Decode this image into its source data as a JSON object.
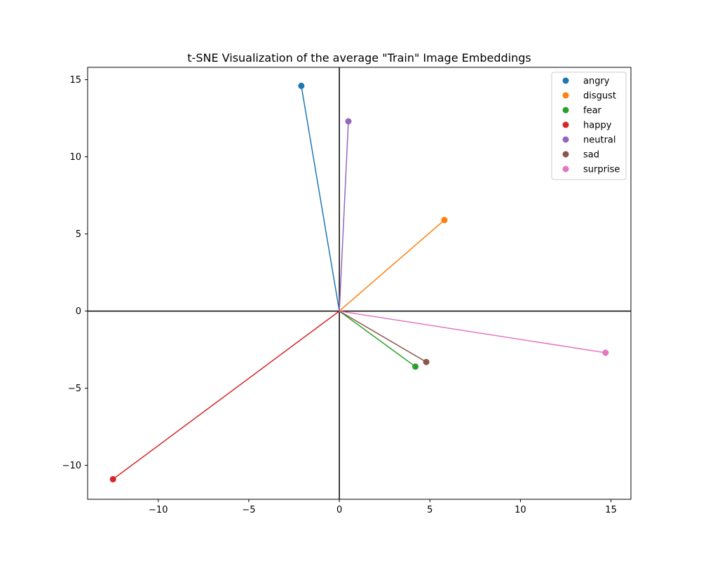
{
  "chart_data": {
    "type": "scatter",
    "title": "t-SNE Visualization of the average \"Train\" Image Embeddings",
    "xlabel": "",
    "ylabel": "",
    "xlim": [
      -13.9,
      16.1
    ],
    "ylim": [
      -12.2,
      15.8
    ],
    "xticks": [
      -10,
      -5,
      0,
      5,
      10,
      15
    ],
    "yticks": [
      -10,
      -5,
      0,
      5,
      10,
      15
    ],
    "tick_labels_x": [
      "−10",
      "−5",
      "0",
      "5",
      "10",
      "15"
    ],
    "tick_labels_y": [
      "−10",
      "−5",
      "0",
      "5",
      "10",
      "15"
    ],
    "grid": false,
    "legend_position": "top-right",
    "origin_axes": true,
    "lines_from_origin": true,
    "series": [
      {
        "name": "angry",
        "x": -2.1,
        "y": 14.6,
        "color": "#1f77b4"
      },
      {
        "name": "disgust",
        "x": 5.8,
        "y": 5.9,
        "color": "#ff7f0e"
      },
      {
        "name": "fear",
        "x": 4.2,
        "y": -3.6,
        "color": "#2ca02c"
      },
      {
        "name": "happy",
        "x": -12.5,
        "y": -10.9,
        "color": "#d62728"
      },
      {
        "name": "neutral",
        "x": 0.5,
        "y": 12.3,
        "color": "#9467bd"
      },
      {
        "name": "sad",
        "x": 4.8,
        "y": -3.3,
        "color": "#8c564b"
      },
      {
        "name": "surprise",
        "x": 14.7,
        "y": -2.7,
        "color": "#e377c2"
      }
    ]
  }
}
